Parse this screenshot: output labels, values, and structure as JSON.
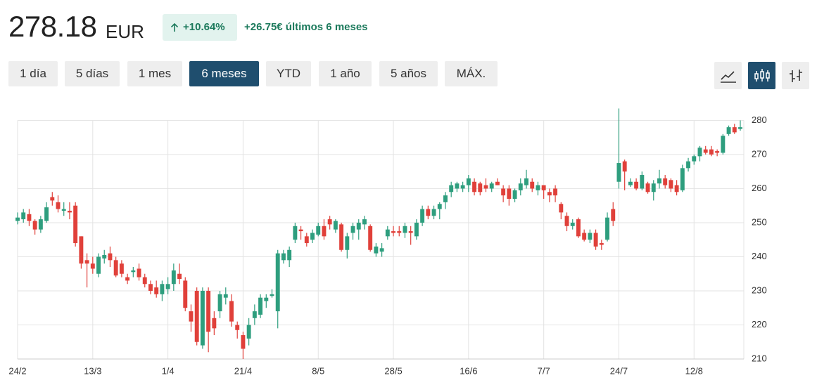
{
  "header": {
    "price": "278.18",
    "currency": "EUR",
    "change_pct": "+10.64%",
    "change_abs": "+26.75€ últimos 6 meses"
  },
  "ranges": [
    "1 día",
    "5 días",
    "1 mes",
    "6 meses",
    "YTD",
    "1 año",
    "5 años",
    "MÁX."
  ],
  "active_range": 3,
  "chart_data": {
    "type": "candlestick",
    "categories": [
      "24/2",
      null,
      null,
      null,
      null,
      null,
      null,
      null,
      null,
      null,
      null,
      null,
      null,
      "13/3",
      null,
      null,
      null,
      null,
      null,
      null,
      null,
      null,
      null,
      null,
      null,
      null,
      "1/4",
      null,
      null,
      null,
      null,
      null,
      null,
      null,
      null,
      null,
      null,
      null,
      null,
      "21/4",
      null,
      null,
      null,
      null,
      null,
      null,
      null,
      null,
      null,
      null,
      null,
      null,
      "8/5",
      null,
      null,
      null,
      null,
      null,
      null,
      null,
      null,
      null,
      null,
      null,
      null,
      "28/5",
      null,
      null,
      null,
      null,
      null,
      null,
      null,
      null,
      null,
      null,
      null,
      null,
      "16/6",
      null,
      null,
      null,
      null,
      null,
      null,
      null,
      null,
      null,
      null,
      null,
      null,
      "7/7",
      null,
      null,
      null,
      null,
      null,
      null,
      null,
      null,
      null,
      null,
      null,
      null,
      "24/7",
      null,
      null,
      null,
      null,
      null,
      null,
      null,
      null,
      null,
      null,
      null,
      null,
      "12/8",
      null,
      null,
      null,
      null,
      null,
      null,
      null,
      null
    ],
    "open": [
      250.5,
      251,
      252.5,
      250.5,
      248,
      250.5,
      257.5,
      256,
      253.5,
      253.5,
      255,
      246,
      239,
      238,
      235,
      239.5,
      241,
      239,
      238,
      234,
      235.5,
      236.5,
      234,
      232,
      231,
      229,
      230.5,
      232,
      235,
      233,
      224,
      230,
      214,
      230,
      222,
      224,
      228,
      227,
      220,
      217,
      216,
      222,
      223,
      227,
      228.5,
      224,
      239,
      239,
      245,
      248,
      246,
      245,
      246.5,
      249,
      251,
      248,
      249.5,
      242,
      247,
      248,
      249.5,
      249,
      241,
      241.5,
      246,
      247.5,
      247.5,
      247,
      247.5,
      246,
      250,
      254,
      252,
      254,
      256,
      259,
      260,
      260,
      261,
      262,
      261.5,
      261,
      260,
      262,
      260,
      260,
      257,
      259.5,
      261,
      262,
      259.5,
      261,
      259,
      260,
      255.5,
      252,
      249,
      251,
      247,
      245,
      247,
      244,
      245,
      254,
      262,
      268,
      261,
      262,
      260,
      261.5,
      259,
      261.5,
      263,
      262.5,
      261,
      259.5,
      266,
      268,
      269.5,
      271.5,
      271.5,
      271,
      270.5,
      276,
      278,
      277.5
    ],
    "high": [
      253,
      254,
      254,
      251,
      252,
      256,
      259,
      258,
      256,
      256,
      256,
      246,
      241,
      240,
      241,
      242,
      243,
      240,
      239,
      235,
      237,
      238,
      235,
      233,
      233,
      233,
      234,
      238,
      238,
      234,
      226,
      231,
      231,
      231,
      224,
      230,
      231,
      229,
      221,
      218,
      222,
      226,
      229,
      229,
      230.5,
      242,
      242,
      243,
      250,
      249,
      247,
      248,
      250,
      251,
      252,
      251,
      250,
      247,
      250,
      251,
      252,
      249.5,
      244,
      244,
      249,
      249,
      249,
      250,
      249,
      251,
      255,
      255,
      255,
      256,
      259,
      262,
      262,
      262,
      264,
      263,
      262,
      263,
      262,
      263,
      261,
      261,
      260,
      263,
      265.5,
      263,
      262,
      261,
      260,
      261,
      256,
      253,
      251,
      251.5,
      248,
      248,
      248,
      245,
      253,
      256,
      283.5,
      268.5,
      263,
      263,
      265,
      262,
      262.5,
      265.5,
      264,
      263,
      262.5,
      267,
      269,
      270,
      272.5,
      272.5,
      272.5,
      271.5,
      276,
      278.5,
      279,
      280
    ],
    "low": [
      249.5,
      250,
      249,
      246.5,
      247,
      250,
      255,
      253,
      252,
      251,
      243,
      236.5,
      231,
      235,
      234,
      238,
      237,
      234,
      234,
      232,
      234,
      233,
      231,
      229,
      228,
      227,
      229,
      230,
      232,
      224,
      218,
      214,
      213,
      212,
      217,
      222,
      226,
      219.5,
      216,
      210,
      214,
      220,
      222,
      225,
      228,
      219,
      238,
      237,
      244,
      245,
      243,
      244,
      246,
      245,
      248,
      247,
      241.5,
      239.5,
      245,
      245,
      248,
      241.5,
      240,
      240,
      245,
      246,
      246,
      245.5,
      243.5,
      245,
      249,
      251,
      251,
      251,
      254,
      257.5,
      259,
      259,
      259,
      258,
      258,
      259,
      259,
      261,
      256,
      255,
      256,
      258,
      260,
      259,
      258,
      257,
      256,
      256,
      251,
      247.5,
      248,
      245.5,
      244.5,
      244,
      242,
      242,
      244.5,
      249,
      260,
      259.5,
      260.5,
      259.5,
      259.5,
      258.5,
      256.5,
      260,
      260,
      259,
      258,
      259,
      265,
      267,
      268,
      270,
      269.5,
      269.5,
      270,
      275.5,
      276,
      277
    ],
    "close": [
      251.5,
      253,
      250.5,
      248,
      251,
      254.5,
      256.5,
      254,
      254,
      253,
      244,
      238,
      238,
      236.5,
      240,
      240.5,
      239,
      234.5,
      235,
      233,
      236,
      234,
      232,
      230,
      229,
      232,
      232,
      236,
      233.5,
      225,
      221,
      215,
      230,
      218,
      219,
      229,
      229,
      221,
      218.5,
      213,
      220,
      224,
      228,
      228,
      229,
      241,
      241,
      242,
      249,
      247.5,
      244,
      247,
      249,
      246,
      249.5,
      250.5,
      242,
      246,
      249,
      250,
      251,
      242,
      243,
      242.5,
      248,
      247,
      247,
      249,
      247,
      250,
      254,
      252,
      254,
      255.5,
      258,
      261,
      261.5,
      261,
      263,
      259,
      259,
      260,
      261.5,
      261,
      258,
      257,
      259.5,
      261.5,
      263,
      260,
      261,
      259.5,
      258,
      258,
      253,
      249,
      250,
      246,
      245,
      247,
      243,
      243.5,
      251.5,
      250.5,
      267.5,
      265,
      262,
      260,
      264,
      259,
      261.5,
      263,
      261,
      260,
      259,
      266,
      268,
      269.5,
      272,
      270.5,
      270,
      270.5,
      275.5,
      278,
      276.5,
      278
    ],
    "up_color": "#2e9e7e",
    "down_color": "#e0403a",
    "ylim": [
      210,
      284
    ],
    "yticks": [
      210,
      220,
      230,
      240,
      250,
      260,
      270,
      280
    ],
    "grid": true
  }
}
